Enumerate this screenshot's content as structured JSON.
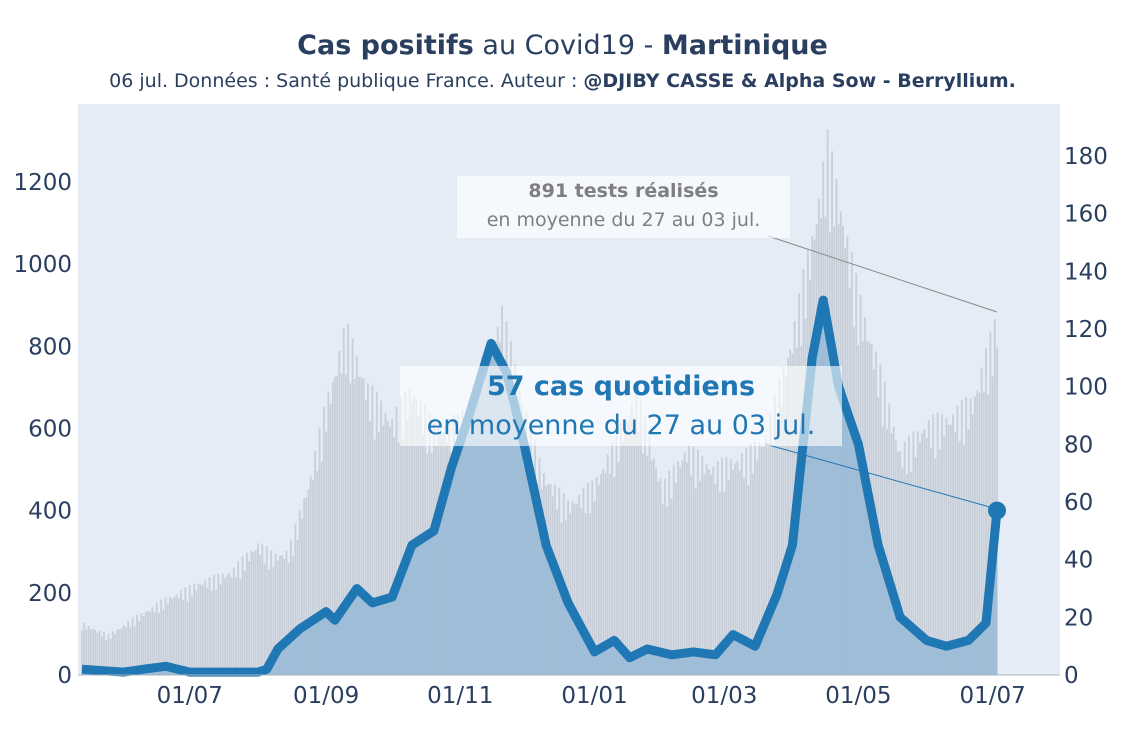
{
  "title": {
    "bold_part": "Cas positifs",
    "middle_part": " au Covid19 - ",
    "region": "Martinique"
  },
  "subtitle": {
    "text": "06 jul. Données : Santé publique France. Auteur : ",
    "authors": "@DJIBY CASSE & Alpha Sow - Berryllium."
  },
  "annotations": {
    "tests_value": "891 tests réalisés",
    "tests_period": "en moyenne du 27 au 03 jul.",
    "cases_value": "57 cas quotidiens",
    "cases_period": "en moyenne du 27 au 03 jul."
  },
  "colors": {
    "plot_background": "#e5ecf6",
    "tests_bars": "#c9cfd8",
    "cases_area": "#8fb5d6",
    "cases_line": "#1f77b4",
    "text": "#2a3f5f"
  },
  "chart_data": {
    "type": "line",
    "x_ticks": [
      "01/07",
      "01/09",
      "01/11",
      "01/01",
      "01/03",
      "01/05",
      "01/07"
    ],
    "x_range": [
      "2020-05-13",
      "2021-07-03"
    ],
    "y_left": {
      "range": [
        0,
        1390
      ],
      "ticks": [
        0,
        200,
        400,
        600,
        800,
        1000,
        1200
      ],
      "series": "tests (daily, bars)"
    },
    "y_right": {
      "range": [
        0,
        198
      ],
      "ticks": [
        0,
        20,
        40,
        60,
        80,
        100,
        120,
        140,
        160,
        180
      ],
      "series": "cases (7-day average, line + area)"
    },
    "grid": false,
    "series": [
      {
        "axis": "left",
        "style": "bar",
        "points": [
          [
            "2020-05-13",
            130
          ],
          [
            "2020-05-25",
            100
          ],
          [
            "2020-06-05",
            140
          ],
          [
            "2020-06-20",
            190
          ],
          [
            "2020-07-05",
            230
          ],
          [
            "2020-07-20",
            260
          ],
          [
            "2020-08-01",
            330
          ],
          [
            "2020-08-08",
            300
          ],
          [
            "2020-08-15",
            310
          ],
          [
            "2020-08-25",
            500
          ],
          [
            "2020-09-01",
            680
          ],
          [
            "2020-09-10",
            870
          ],
          [
            "2020-09-20",
            720
          ],
          [
            "2020-10-01",
            640
          ],
          [
            "2020-10-10",
            720
          ],
          [
            "2020-10-20",
            620
          ],
          [
            "2020-11-01",
            640
          ],
          [
            "2020-11-15",
            830
          ],
          [
            "2020-11-20",
            910
          ],
          [
            "2020-11-28",
            720
          ],
          [
            "2020-12-08",
            510
          ],
          [
            "2020-12-20",
            430
          ],
          [
            "2021-01-01",
            480
          ],
          [
            "2021-01-10",
            580
          ],
          [
            "2021-01-20",
            710
          ],
          [
            "2021-02-01",
            470
          ],
          [
            "2021-02-12",
            570
          ],
          [
            "2021-02-24",
            520
          ],
          [
            "2021-03-10",
            550
          ],
          [
            "2021-03-20",
            600
          ],
          [
            "2021-04-01",
            850
          ],
          [
            "2021-04-10",
            1100
          ],
          [
            "2021-04-17",
            1330
          ],
          [
            "2021-04-24",
            1150
          ],
          [
            "2021-05-01",
            950
          ],
          [
            "2021-05-10",
            780
          ],
          [
            "2021-05-20",
            560
          ],
          [
            "2021-06-01",
            630
          ],
          [
            "2021-06-12",
            650
          ],
          [
            "2021-06-22",
            690
          ],
          [
            "2021-07-03",
            891
          ]
        ]
      },
      {
        "axis": "right",
        "style": "line+area",
        "points": [
          [
            "2020-05-13",
            2
          ],
          [
            "2020-06-01",
            1
          ],
          [
            "2020-06-10",
            2
          ],
          [
            "2020-06-20",
            3
          ],
          [
            "2020-07-01",
            1
          ],
          [
            "2020-08-01",
            1
          ],
          [
            "2020-08-05",
            2
          ],
          [
            "2020-08-10",
            9
          ],
          [
            "2020-08-20",
            16
          ],
          [
            "2020-09-01",
            22
          ],
          [
            "2020-09-05",
            19
          ],
          [
            "2020-09-15",
            30
          ],
          [
            "2020-09-22",
            25
          ],
          [
            "2020-10-01",
            27
          ],
          [
            "2020-10-10",
            45
          ],
          [
            "2020-10-20",
            50
          ],
          [
            "2020-10-28",
            72
          ],
          [
            "2020-11-05",
            90
          ],
          [
            "2020-11-15",
            115
          ],
          [
            "2020-11-22",
            105
          ],
          [
            "2020-11-30",
            80
          ],
          [
            "2020-12-10",
            45
          ],
          [
            "2020-12-20",
            25
          ],
          [
            "2021-01-01",
            8
          ],
          [
            "2021-01-10",
            12
          ],
          [
            "2021-01-17",
            6
          ],
          [
            "2021-01-25",
            9
          ],
          [
            "2021-02-05",
            7
          ],
          [
            "2021-02-15",
            8
          ],
          [
            "2021-02-25",
            7
          ],
          [
            "2021-03-05",
            14
          ],
          [
            "2021-03-15",
            10
          ],
          [
            "2021-03-25",
            28
          ],
          [
            "2021-04-01",
            45
          ],
          [
            "2021-04-10",
            110
          ],
          [
            "2021-04-15",
            130
          ],
          [
            "2021-04-22",
            100
          ],
          [
            "2021-05-01",
            80
          ],
          [
            "2021-05-10",
            45
          ],
          [
            "2021-05-20",
            20
          ],
          [
            "2021-06-01",
            12
          ],
          [
            "2021-06-10",
            10
          ],
          [
            "2021-06-20",
            12
          ],
          [
            "2021-06-28",
            18
          ],
          [
            "2021-07-03",
            57
          ]
        ]
      }
    ]
  }
}
